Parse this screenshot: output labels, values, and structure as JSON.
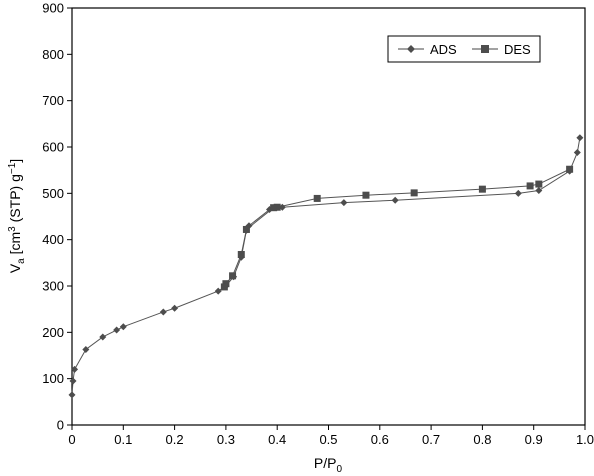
{
  "chart_data": {
    "type": "line",
    "xlabel": {
      "main": "P/P",
      "sub": "0"
    },
    "ylabel": {
      "main": "V",
      "sub": "a",
      "rest1": " [cm",
      "sup1": "3",
      "rest2": " (STP) g",
      "sup2": "−1",
      "rest3": "]"
    },
    "xlim": [
      0,
      1
    ],
    "ylim": [
      0,
      900
    ],
    "x_ticks": [
      "0",
      "0.1",
      "0.2",
      "0.3",
      "0.4",
      "0.5",
      "0.6",
      "0.7",
      "0.8",
      "0.9",
      "1.0"
    ],
    "y_ticks": [
      "0",
      "100",
      "200",
      "300",
      "400",
      "500",
      "600",
      "700",
      "800",
      "900"
    ],
    "legend_position": "top-right",
    "series": [
      {
        "name": "ADS",
        "marker": "diamond",
        "points": [
          [
            0.0,
            65
          ],
          [
            0.002,
            95
          ],
          [
            0.005,
            120
          ],
          [
            0.027,
            163
          ],
          [
            0.06,
            190
          ],
          [
            0.087,
            205
          ],
          [
            0.1,
            212
          ],
          [
            0.178,
            244
          ],
          [
            0.2,
            252
          ],
          [
            0.285,
            289
          ],
          [
            0.3,
            300
          ],
          [
            0.315,
            320
          ],
          [
            0.33,
            362
          ],
          [
            0.34,
            420
          ],
          [
            0.345,
            430
          ],
          [
            0.385,
            465
          ],
          [
            0.41,
            470
          ],
          [
            0.53,
            480
          ],
          [
            0.63,
            485
          ],
          [
            0.87,
            500
          ],
          [
            0.91,
            506
          ],
          [
            0.97,
            548
          ],
          [
            0.985,
            588
          ],
          [
            0.99,
            620
          ]
        ]
      },
      {
        "name": "DES",
        "marker": "square",
        "points": [
          [
            0.97,
            552
          ],
          [
            0.91,
            520
          ],
          [
            0.893,
            516
          ],
          [
            0.8,
            509
          ],
          [
            0.667,
            501
          ],
          [
            0.573,
            496
          ],
          [
            0.478,
            489
          ],
          [
            0.4,
            470
          ],
          [
            0.393,
            469
          ],
          [
            0.34,
            422
          ],
          [
            0.33,
            368
          ],
          [
            0.313,
            322
          ],
          [
            0.3,
            305
          ],
          [
            0.297,
            298
          ]
        ]
      }
    ]
  }
}
